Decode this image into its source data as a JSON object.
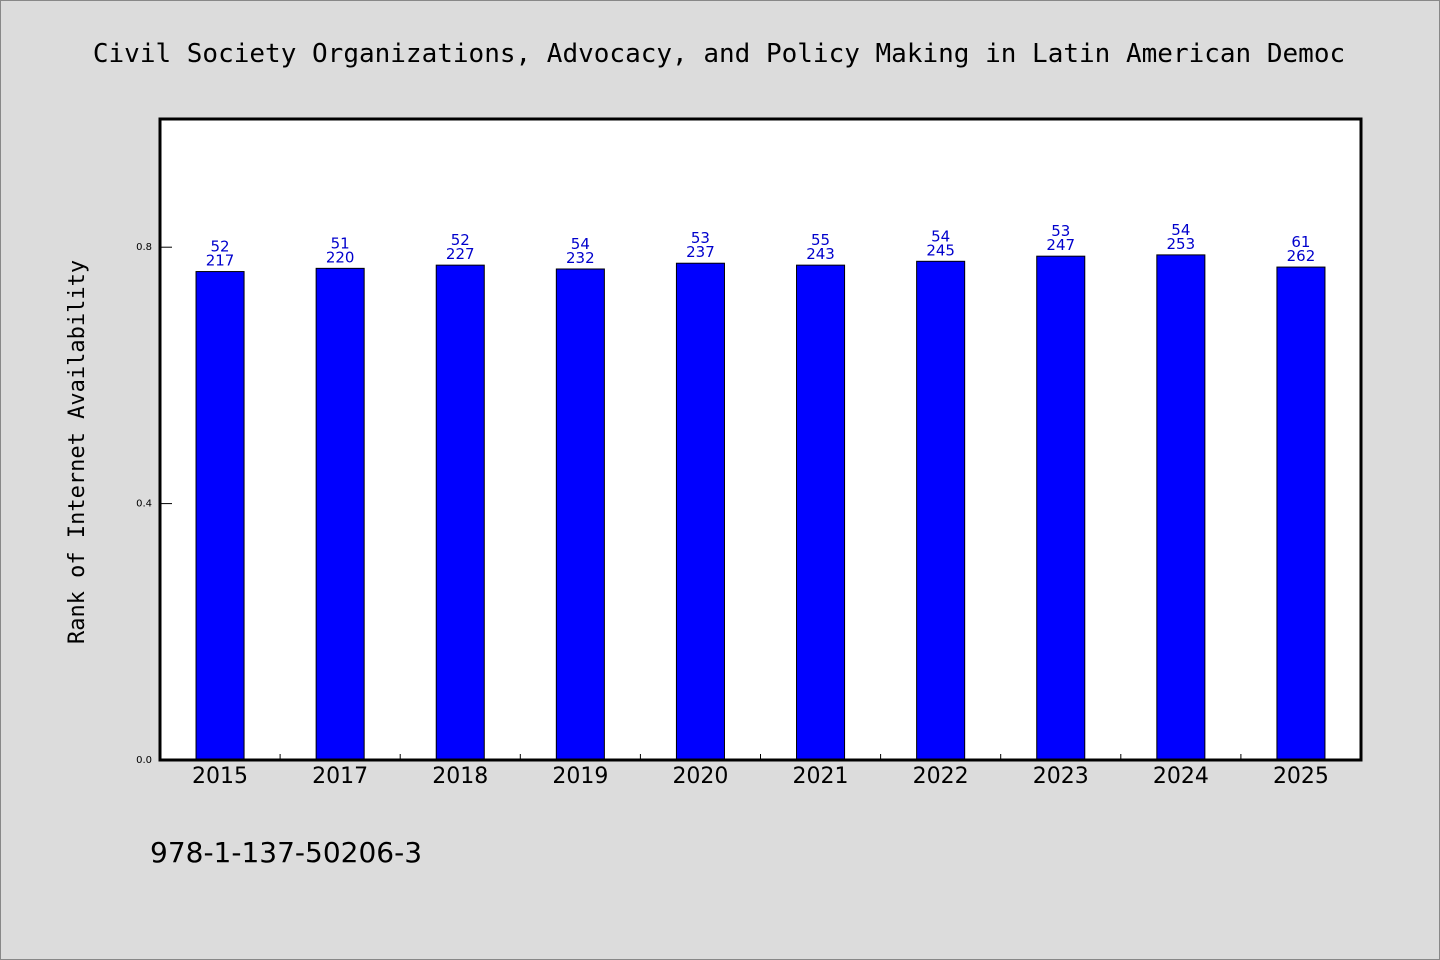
{
  "chart_data": {
    "type": "bar",
    "title": "Civil Society Organizations, Advocacy, and Policy Making in Latin American Democ",
    "xlabel": "",
    "ylabel": "Rank of Internet Availability",
    "categories": [
      "2015",
      "2017",
      "2018",
      "2019",
      "2020",
      "2021",
      "2022",
      "2023",
      "2024",
      "2025"
    ],
    "values": [
      0.762,
      0.767,
      0.772,
      0.766,
      0.775,
      0.772,
      0.778,
      0.786,
      0.788,
      0.769
    ],
    "bar_labels_top": [
      "52",
      "51",
      "52",
      "54",
      "53",
      "55",
      "54",
      "53",
      "54",
      "61"
    ],
    "bar_labels_bottom": [
      "217",
      "220",
      "227",
      "232",
      "237",
      "243",
      "245",
      "247",
      "253",
      "262"
    ],
    "yticks": [
      "0.0",
      "0.4",
      "0.8"
    ],
    "ylim": [
      0,
      1.0
    ],
    "grid": false,
    "colors": {
      "bar": "#0000ff",
      "bar_edge": "#000000",
      "data_label": "#0000cc",
      "background": "#dcdcdc",
      "plot_background": "#ffffff"
    }
  },
  "footnote": "978-1-137-50206-3"
}
